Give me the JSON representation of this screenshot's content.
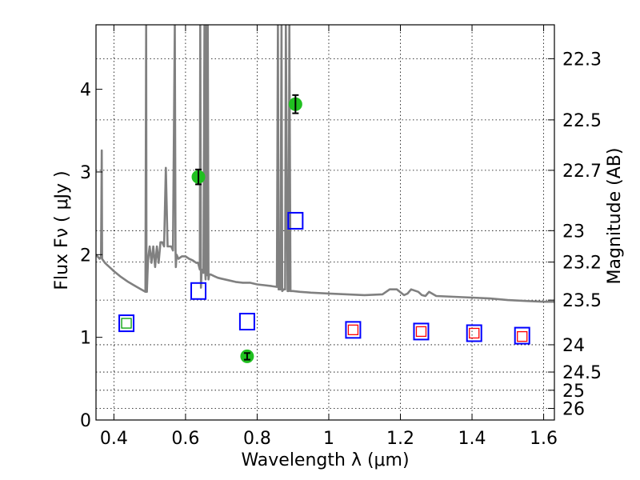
{
  "chart_data": {
    "type": "scatter",
    "xlabel": "Wavelength  λ (μm)",
    "ylabel": "Flux  Fν  ( μJy )",
    "ylabel_right": "Magnitude (AB)",
    "xlim": [
      0.35,
      1.63
    ],
    "ylim": [
      0,
      4.78
    ],
    "grid": true,
    "x_ticks": [
      {
        "value": 0.4,
        "label": "0.4"
      },
      {
        "value": 0.6,
        "label": "0.6"
      },
      {
        "value": 0.8,
        "label": "0.8"
      },
      {
        "value": 1.0,
        "label": "1"
      },
      {
        "value": 1.2,
        "label": "1.2"
      },
      {
        "value": 1.4,
        "label": "1.4"
      },
      {
        "value": 1.6,
        "label": "1.6"
      }
    ],
    "y_ticks": [
      {
        "value": 0,
        "label": "0"
      },
      {
        "value": 1,
        "label": "1"
      },
      {
        "value": 2,
        "label": "2"
      },
      {
        "value": 3,
        "label": "3"
      },
      {
        "value": 4,
        "label": "4"
      }
    ],
    "right_ticks": [
      {
        "flux": 4.37,
        "label": "22.3"
      },
      {
        "flux": 3.63,
        "label": "22.5"
      },
      {
        "flux": 3.02,
        "label": "22.7"
      },
      {
        "flux": 2.29,
        "label": "23"
      },
      {
        "flux": 1.91,
        "label": "23.2"
      },
      {
        "flux": 1.45,
        "label": "23.5"
      },
      {
        "flux": 0.91,
        "label": "24"
      },
      {
        "flux": 0.58,
        "label": "24.5"
      },
      {
        "flux": 0.36,
        "label": "25"
      },
      {
        "flux": 0.14,
        "label": "26"
      }
    ],
    "series": [
      {
        "marker": "line",
        "color": "#808080",
        "x": [
          0.35,
          0.36,
          0.363,
          0.364,
          0.366,
          0.367,
          0.37,
          0.375,
          0.38,
          0.39,
          0.4,
          0.42,
          0.44,
          0.46,
          0.48,
          0.488,
          0.49,
          0.491,
          0.492,
          0.494,
          0.495,
          0.497,
          0.5,
          0.505,
          0.51,
          0.515,
          0.52,
          0.525,
          0.53,
          0.535,
          0.54,
          0.545,
          0.55,
          0.56,
          0.565,
          0.57,
          0.572,
          0.573,
          0.575,
          0.58,
          0.59,
          0.6,
          0.61,
          0.62,
          0.63,
          0.635,
          0.64,
          0.641,
          0.643,
          0.645,
          0.647,
          0.65,
          0.653,
          0.655,
          0.656,
          0.658,
          0.66,
          0.662,
          0.664,
          0.666,
          0.67,
          0.68,
          0.69,
          0.7,
          0.72,
          0.74,
          0.76,
          0.78,
          0.8,
          0.82,
          0.84,
          0.855,
          0.858,
          0.86,
          0.862,
          0.865,
          0.868,
          0.87,
          0.872,
          0.875,
          0.878,
          0.88,
          0.885,
          0.888,
          0.89,
          0.893,
          0.895,
          0.9,
          0.92,
          0.95,
          1.0,
          1.05,
          1.1,
          1.15,
          1.17,
          1.19,
          1.21,
          1.22,
          1.23,
          1.25,
          1.26,
          1.27,
          1.28,
          1.3,
          1.35,
          1.4,
          1.45,
          1.5,
          1.55,
          1.6,
          1.63
        ],
        "y": [
          2.0,
          1.95,
          1.97,
          1.98,
          3.26,
          1.95,
          1.93,
          1.9,
          1.88,
          1.84,
          1.8,
          1.73,
          1.67,
          1.62,
          1.57,
          1.55,
          4.78,
          1.6,
          1.55,
          1.8,
          1.9,
          2.0,
          2.1,
          1.9,
          2.1,
          1.85,
          2.1,
          1.9,
          2.15,
          2.15,
          2.1,
          3.05,
          2.1,
          2.1,
          2.05,
          4.78,
          2.08,
          1.85,
          2.0,
          1.95,
          1.98,
          1.98,
          1.95,
          1.93,
          1.9,
          1.9,
          1.82,
          4.78,
          1.6,
          1.82,
          1.8,
          1.78,
          4.78,
          1.8,
          1.7,
          4.78,
          1.75,
          4.78,
          1.7,
          1.76,
          1.76,
          1.74,
          1.72,
          1.71,
          1.69,
          1.67,
          1.66,
          1.66,
          1.64,
          1.63,
          1.62,
          1.61,
          4.78,
          1.58,
          1.58,
          1.58,
          4.78,
          1.56,
          1.57,
          1.58,
          1.58,
          4.78,
          1.56,
          1.56,
          4.78,
          1.56,
          1.56,
          1.56,
          1.55,
          1.54,
          1.53,
          1.52,
          1.51,
          1.52,
          1.58,
          1.58,
          1.51,
          1.53,
          1.58,
          1.55,
          1.51,
          1.5,
          1.55,
          1.5,
          1.49,
          1.48,
          1.47,
          1.45,
          1.44,
          1.43,
          1.43
        ]
      },
      {
        "marker": "square",
        "color": "#0000ff",
        "x": [
          0.435,
          0.636,
          0.772,
          0.907,
          1.068,
          1.258,
          1.406,
          1.54
        ],
        "y": [
          1.17,
          1.56,
          1.19,
          2.41,
          1.09,
          1.07,
          1.05,
          1.02
        ]
      },
      {
        "marker": "square-small",
        "color": "#ff0000",
        "x": [
          1.068,
          1.258,
          1.406,
          1.54
        ],
        "y": [
          1.09,
          1.07,
          1.05,
          1.01
        ]
      },
      {
        "marker": "square-small",
        "color": "#00a000",
        "x": [
          0.435
        ],
        "y": [
          1.17
        ]
      },
      {
        "marker": "circle",
        "color": "#20c020",
        "x": [
          0.636,
          0.772,
          0.907
        ],
        "y": [
          2.94,
          0.77,
          3.82
        ],
        "yerr": [
          0.09,
          0.04,
          0.11
        ]
      }
    ]
  }
}
